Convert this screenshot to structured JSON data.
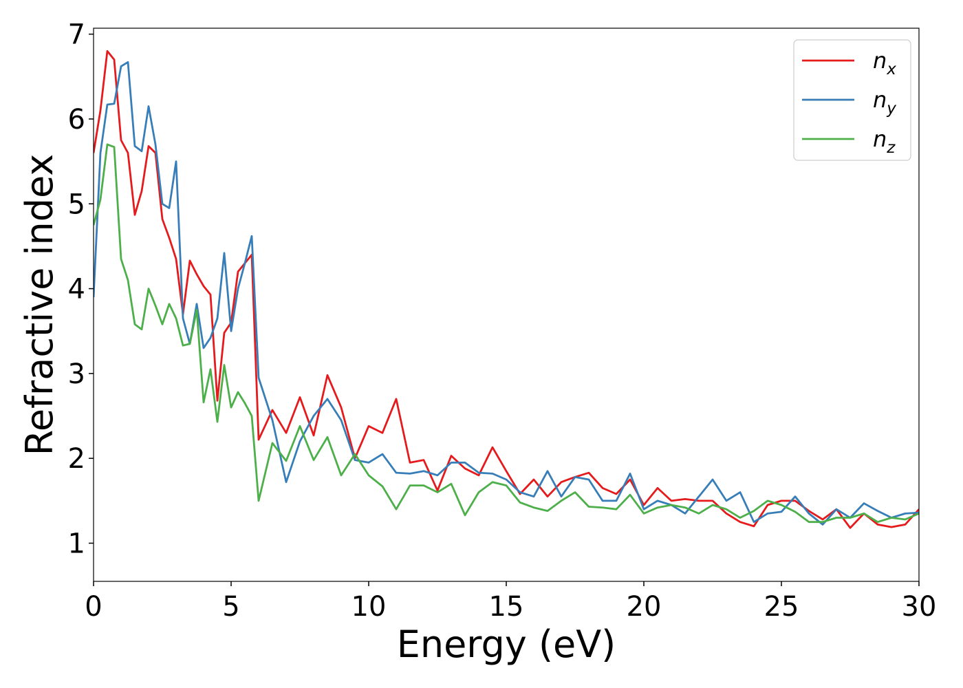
{
  "chart_data": {
    "type": "line",
    "x_label": "Energy (eV)",
    "y_label": "Refractive index",
    "x": [
      0,
      0.25,
      0.5,
      0.75,
      1,
      1.25,
      1.5,
      1.75,
      2,
      2.25,
      2.5,
      2.75,
      3,
      3.25,
      3.5,
      3.75,
      4,
      4.25,
      4.5,
      4.75,
      5,
      5.25,
      5.5,
      5.75,
      6,
      6.5,
      7,
      7.5,
      8,
      8.5,
      9,
      9.5,
      10,
      10.5,
      11,
      11.5,
      12,
      12.5,
      13,
      13.5,
      14,
      14.5,
      15,
      15.5,
      16,
      16.5,
      17,
      17.5,
      18,
      18.5,
      19,
      19.5,
      20,
      20.5,
      21,
      21.5,
      22,
      22.5,
      23,
      23.5,
      24,
      24.5,
      25,
      25.5,
      26,
      26.5,
      27,
      27.5,
      28,
      28.5,
      29,
      29.5,
      30
    ],
    "series": [
      {
        "name": "n_x",
        "color": "#e41a1c",
        "values": [
          5.6,
          6.1,
          6.8,
          6.7,
          5.75,
          5.6,
          4.87,
          5.15,
          5.68,
          5.6,
          4.82,
          4.6,
          4.35,
          3.7,
          4.33,
          4.17,
          4.03,
          3.93,
          2.68,
          3.48,
          3.6,
          4.2,
          4.3,
          4.4,
          2.22,
          2.57,
          2.3,
          2.72,
          2.27,
          2.98,
          2.6,
          2.0,
          2.38,
          2.3,
          2.7,
          1.95,
          1.98,
          1.62,
          2.03,
          1.88,
          1.8,
          2.13,
          1.85,
          1.58,
          1.75,
          1.55,
          1.72,
          1.78,
          1.83,
          1.65,
          1.58,
          1.75,
          1.45,
          1.65,
          1.5,
          1.52,
          1.5,
          1.5,
          1.35,
          1.25,
          1.2,
          1.45,
          1.5,
          1.5,
          1.38,
          1.28,
          1.4,
          1.18,
          1.35,
          1.22,
          1.19,
          1.22,
          1.4
        ]
      },
      {
        "name": "n_y",
        "color": "#377eb8",
        "values": [
          3.9,
          5.6,
          6.17,
          6.18,
          6.62,
          6.67,
          5.68,
          5.62,
          6.15,
          5.7,
          5.0,
          4.95,
          5.5,
          3.65,
          3.35,
          3.82,
          3.3,
          3.42,
          3.65,
          4.42,
          3.5,
          4.0,
          4.3,
          4.62,
          2.95,
          2.45,
          1.72,
          2.2,
          2.5,
          2.7,
          2.45,
          1.98,
          1.95,
          2.05,
          1.83,
          1.82,
          1.85,
          1.8,
          1.95,
          1.95,
          1.83,
          1.82,
          1.75,
          1.6,
          1.55,
          1.85,
          1.55,
          1.78,
          1.75,
          1.5,
          1.5,
          1.82,
          1.4,
          1.5,
          1.45,
          1.35,
          1.55,
          1.75,
          1.5,
          1.6,
          1.25,
          1.35,
          1.37,
          1.55,
          1.35,
          1.22,
          1.4,
          1.3,
          1.47,
          1.38,
          1.3,
          1.35,
          1.36
        ]
      },
      {
        "name": "n_z",
        "color": "#4daf4a",
        "values": [
          4.75,
          5.05,
          5.7,
          5.67,
          4.35,
          4.1,
          3.58,
          3.52,
          4.0,
          3.8,
          3.58,
          3.82,
          3.65,
          3.33,
          3.35,
          3.75,
          2.66,
          3.05,
          2.43,
          3.1,
          2.6,
          2.78,
          2.65,
          2.5,
          1.5,
          2.18,
          1.97,
          2.38,
          1.98,
          2.25,
          1.8,
          2.05,
          1.8,
          1.67,
          1.4,
          1.68,
          1.68,
          1.6,
          1.7,
          1.33,
          1.6,
          1.72,
          1.68,
          1.48,
          1.42,
          1.38,
          1.5,
          1.6,
          1.43,
          1.42,
          1.4,
          1.57,
          1.35,
          1.42,
          1.45,
          1.42,
          1.35,
          1.45,
          1.4,
          1.3,
          1.38,
          1.5,
          1.45,
          1.37,
          1.25,
          1.25,
          1.3,
          1.3,
          1.35,
          1.25,
          1.3,
          1.28,
          1.35
        ]
      }
    ],
    "xlim": [
      0,
      30
    ],
    "xticks": [
      0,
      5,
      10,
      15,
      20,
      25,
      30
    ],
    "ylim": [
      0.55,
      7.07
    ],
    "yticks": [
      1,
      2,
      3,
      4,
      5,
      6,
      7
    ],
    "grid": false,
    "legend": "upper right"
  }
}
